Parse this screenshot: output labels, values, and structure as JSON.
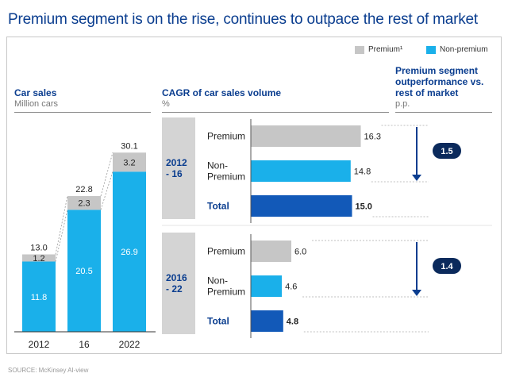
{
  "title": "Premium segment is on the rise, continues to outpace the rest of market",
  "legend": [
    {
      "label": "Premium¹",
      "color": "#c6c6c6"
    },
    {
      "label": "Non-premium",
      "color": "#1ab0ea"
    }
  ],
  "colors": {
    "premium": "#c6c6c6",
    "non_premium": "#1ab0ea",
    "total": "#1259b8",
    "band": "#d4d4d4",
    "outperf_badge": "#0b2a5c"
  },
  "left_chart": {
    "header": "Car sales",
    "unit": "Million cars"
  },
  "mid_chart": {
    "header": "CAGR of car sales volume",
    "unit": "%"
  },
  "right_panel": {
    "header_lines": [
      "Premium segment",
      "outperformance vs.",
      "rest of market"
    ],
    "unit": "p.p."
  },
  "source": "SOURCE: McKinsey AI-view",
  "chart_data": [
    {
      "type": "bar",
      "stacked": true,
      "title": "Car sales",
      "ylabel": "Million cars",
      "categories": [
        "2012",
        "16",
        "2022"
      ],
      "series": [
        {
          "name": "Non-premium",
          "values": [
            11.8,
            20.5,
            26.9
          ]
        },
        {
          "name": "Premium¹",
          "values": [
            1.2,
            2.3,
            3.2
          ]
        }
      ],
      "totals": [
        "13.0",
        "22.8",
        "30.1"
      ],
      "value_labels": {
        "Non-premium": [
          "11.8",
          "20.5",
          "26.9"
        ],
        "Premium¹": [
          "1.2",
          "2.3",
          "3.2"
        ]
      }
    },
    {
      "type": "bar",
      "orientation": "horizontal",
      "title": "CAGR of car sales volume",
      "ylabel": "%",
      "groups": [
        {
          "period": [
            "2012",
            "- 16"
          ],
          "rows": [
            {
              "label": [
                "Premium"
              ],
              "value": 16.3,
              "display": "16.3",
              "kind": "premium"
            },
            {
              "label": [
                "Non-",
                "Premium"
              ],
              "value": 14.8,
              "display": "14.8",
              "kind": "non_premium"
            },
            {
              "label": [
                "Total"
              ],
              "value": 15.0,
              "display": "15.0",
              "kind": "total"
            }
          ],
          "outperformance": "1.5"
        },
        {
          "period": [
            "2016",
            "- 22"
          ],
          "rows": [
            {
              "label": [
                "Premium"
              ],
              "value": 6.0,
              "display": "6.0",
              "kind": "premium"
            },
            {
              "label": [
                "Non-",
                "Premium"
              ],
              "value": 4.6,
              "display": "4.6",
              "kind": "non_premium"
            },
            {
              "label": [
                "Total"
              ],
              "value": 4.8,
              "display": "4.8",
              "kind": "total"
            }
          ],
          "outperformance": "1.4"
        }
      ]
    }
  ]
}
